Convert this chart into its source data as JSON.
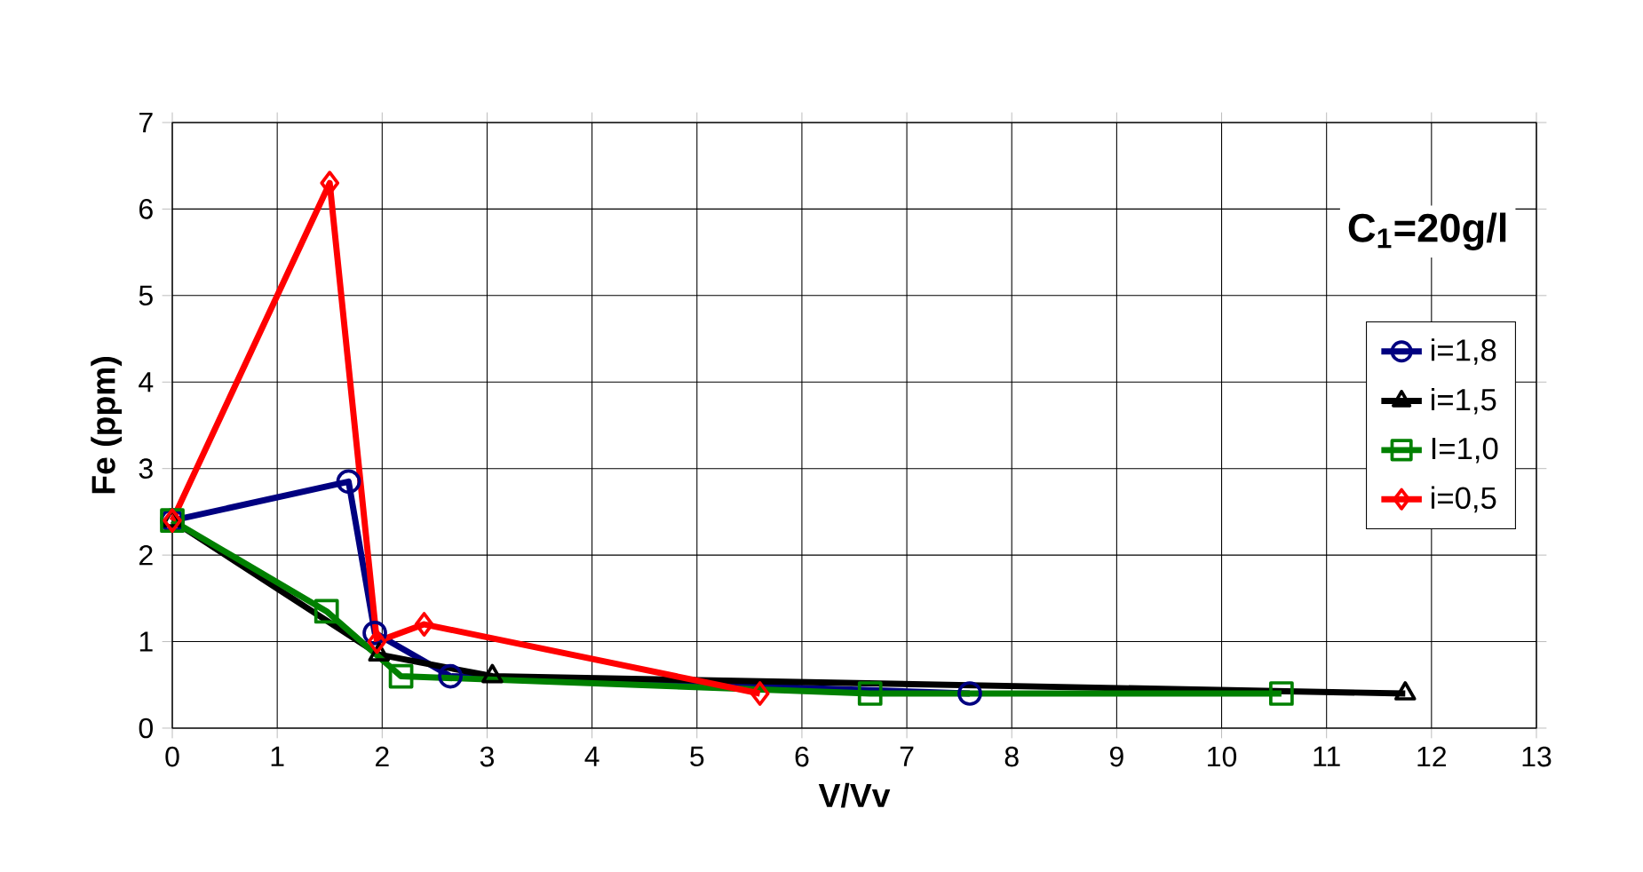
{
  "chart_data": {
    "type": "line",
    "xlabel": "V/Vv",
    "ylabel": "Fe (ppm)",
    "annotations": [
      "C$_{1}$=20g/l"
    ],
    "xlim": [
      0,
      13
    ],
    "ylim": [
      0,
      7
    ],
    "xticks": [
      0,
      1,
      2,
      3,
      4,
      5,
      6,
      7,
      8,
      9,
      10,
      11,
      12,
      13
    ],
    "yticks": [
      0,
      1,
      2,
      3,
      4,
      5,
      6,
      7
    ],
    "grid": true,
    "legend": "right",
    "line_style": "solid",
    "series": [
      {
        "name": "i=1,8",
        "color": "#000080",
        "marker": "circle",
        "x": [
          0,
          1.68,
          1.93,
          2.65,
          7.6
        ],
        "values": [
          2.4,
          2.85,
          1.1,
          0.6,
          0.4
        ]
      },
      {
        "name": "i=1,5",
        "color": "#000000",
        "marker": "triangle",
        "x": [
          0,
          1.97,
          3.05,
          11.75
        ],
        "values": [
          2.4,
          0.85,
          0.6,
          0.4
        ]
      },
      {
        "name": "I=1,0",
        "color": "#008000",
        "marker": "square",
        "x": [
          0,
          1.47,
          2.18,
          6.65,
          10.57
        ],
        "values": [
          2.4,
          1.35,
          0.6,
          0.4,
          0.4
        ]
      },
      {
        "name": "i=0,5",
        "color": "#ff0000",
        "marker": "diamond",
        "x": [
          0,
          1.5,
          1.95,
          2.4,
          5.6
        ],
        "values": [
          2.4,
          6.3,
          1.0,
          1.2,
          0.4
        ]
      }
    ]
  }
}
